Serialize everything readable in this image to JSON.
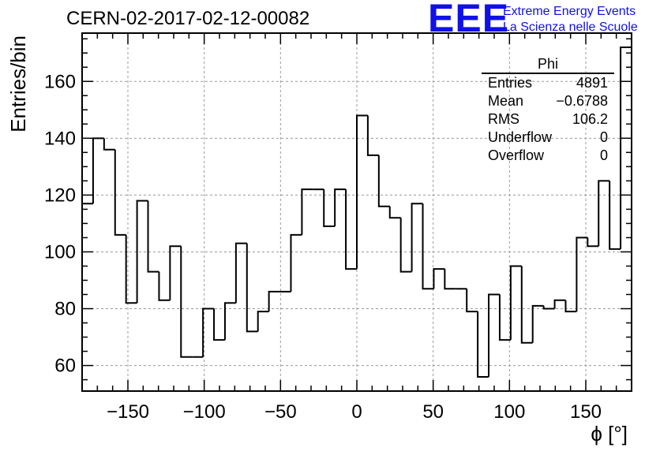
{
  "header": {
    "run_title": "CERN-02-2017-02-12-00082",
    "logo_text": "EEE",
    "logo_line1": "Extreme Energy Events",
    "logo_line2": "La Scienza nelle Scuole",
    "logo_color": "#1010e8"
  },
  "stats_box": {
    "title": "Phi",
    "rows": [
      {
        "label": "Entries",
        "value": "4891"
      },
      {
        "label": "Mean",
        "value": "−0.6788"
      },
      {
        "label": "RMS",
        "value": "106.2"
      },
      {
        "label": "Underflow",
        "value": "0"
      },
      {
        "label": "Overflow",
        "value": "0"
      }
    ]
  },
  "chart_data": {
    "type": "histogram",
    "title": "CERN-02-2017-02-12-00082",
    "xlabel": "ϕ [°]",
    "ylabel": "Entries/bin",
    "xlim": [
      -180,
      180
    ],
    "ylim": [
      51,
      177
    ],
    "bin_width": 7.2,
    "bin_edges_start": -180,
    "values": [
      117,
      140,
      136,
      106,
      82,
      118,
      93,
      83,
      102,
      63,
      63,
      80,
      69,
      82,
      103,
      72,
      79,
      86,
      86,
      106,
      122,
      122,
      109,
      122,
      94,
      148,
      134,
      116,
      112,
      93,
      117,
      87,
      94,
      87,
      87,
      79,
      56,
      85,
      69,
      95,
      68,
      81,
      80,
      83,
      79,
      105,
      102,
      125,
      101,
      172
    ],
    "x_ticks": [
      -150,
      -100,
      -50,
      0,
      50,
      100,
      150
    ],
    "x_tick_labels": [
      "−150",
      "−100",
      "−50",
      "0",
      "50",
      "100",
      "150"
    ],
    "y_ticks": [
      60,
      80,
      100,
      120,
      140,
      160
    ],
    "y_tick_labels": [
      "60",
      "80",
      "100",
      "120",
      "140",
      "160"
    ],
    "grid": true,
    "line_color": "#000000",
    "grid_color": "#999999"
  }
}
